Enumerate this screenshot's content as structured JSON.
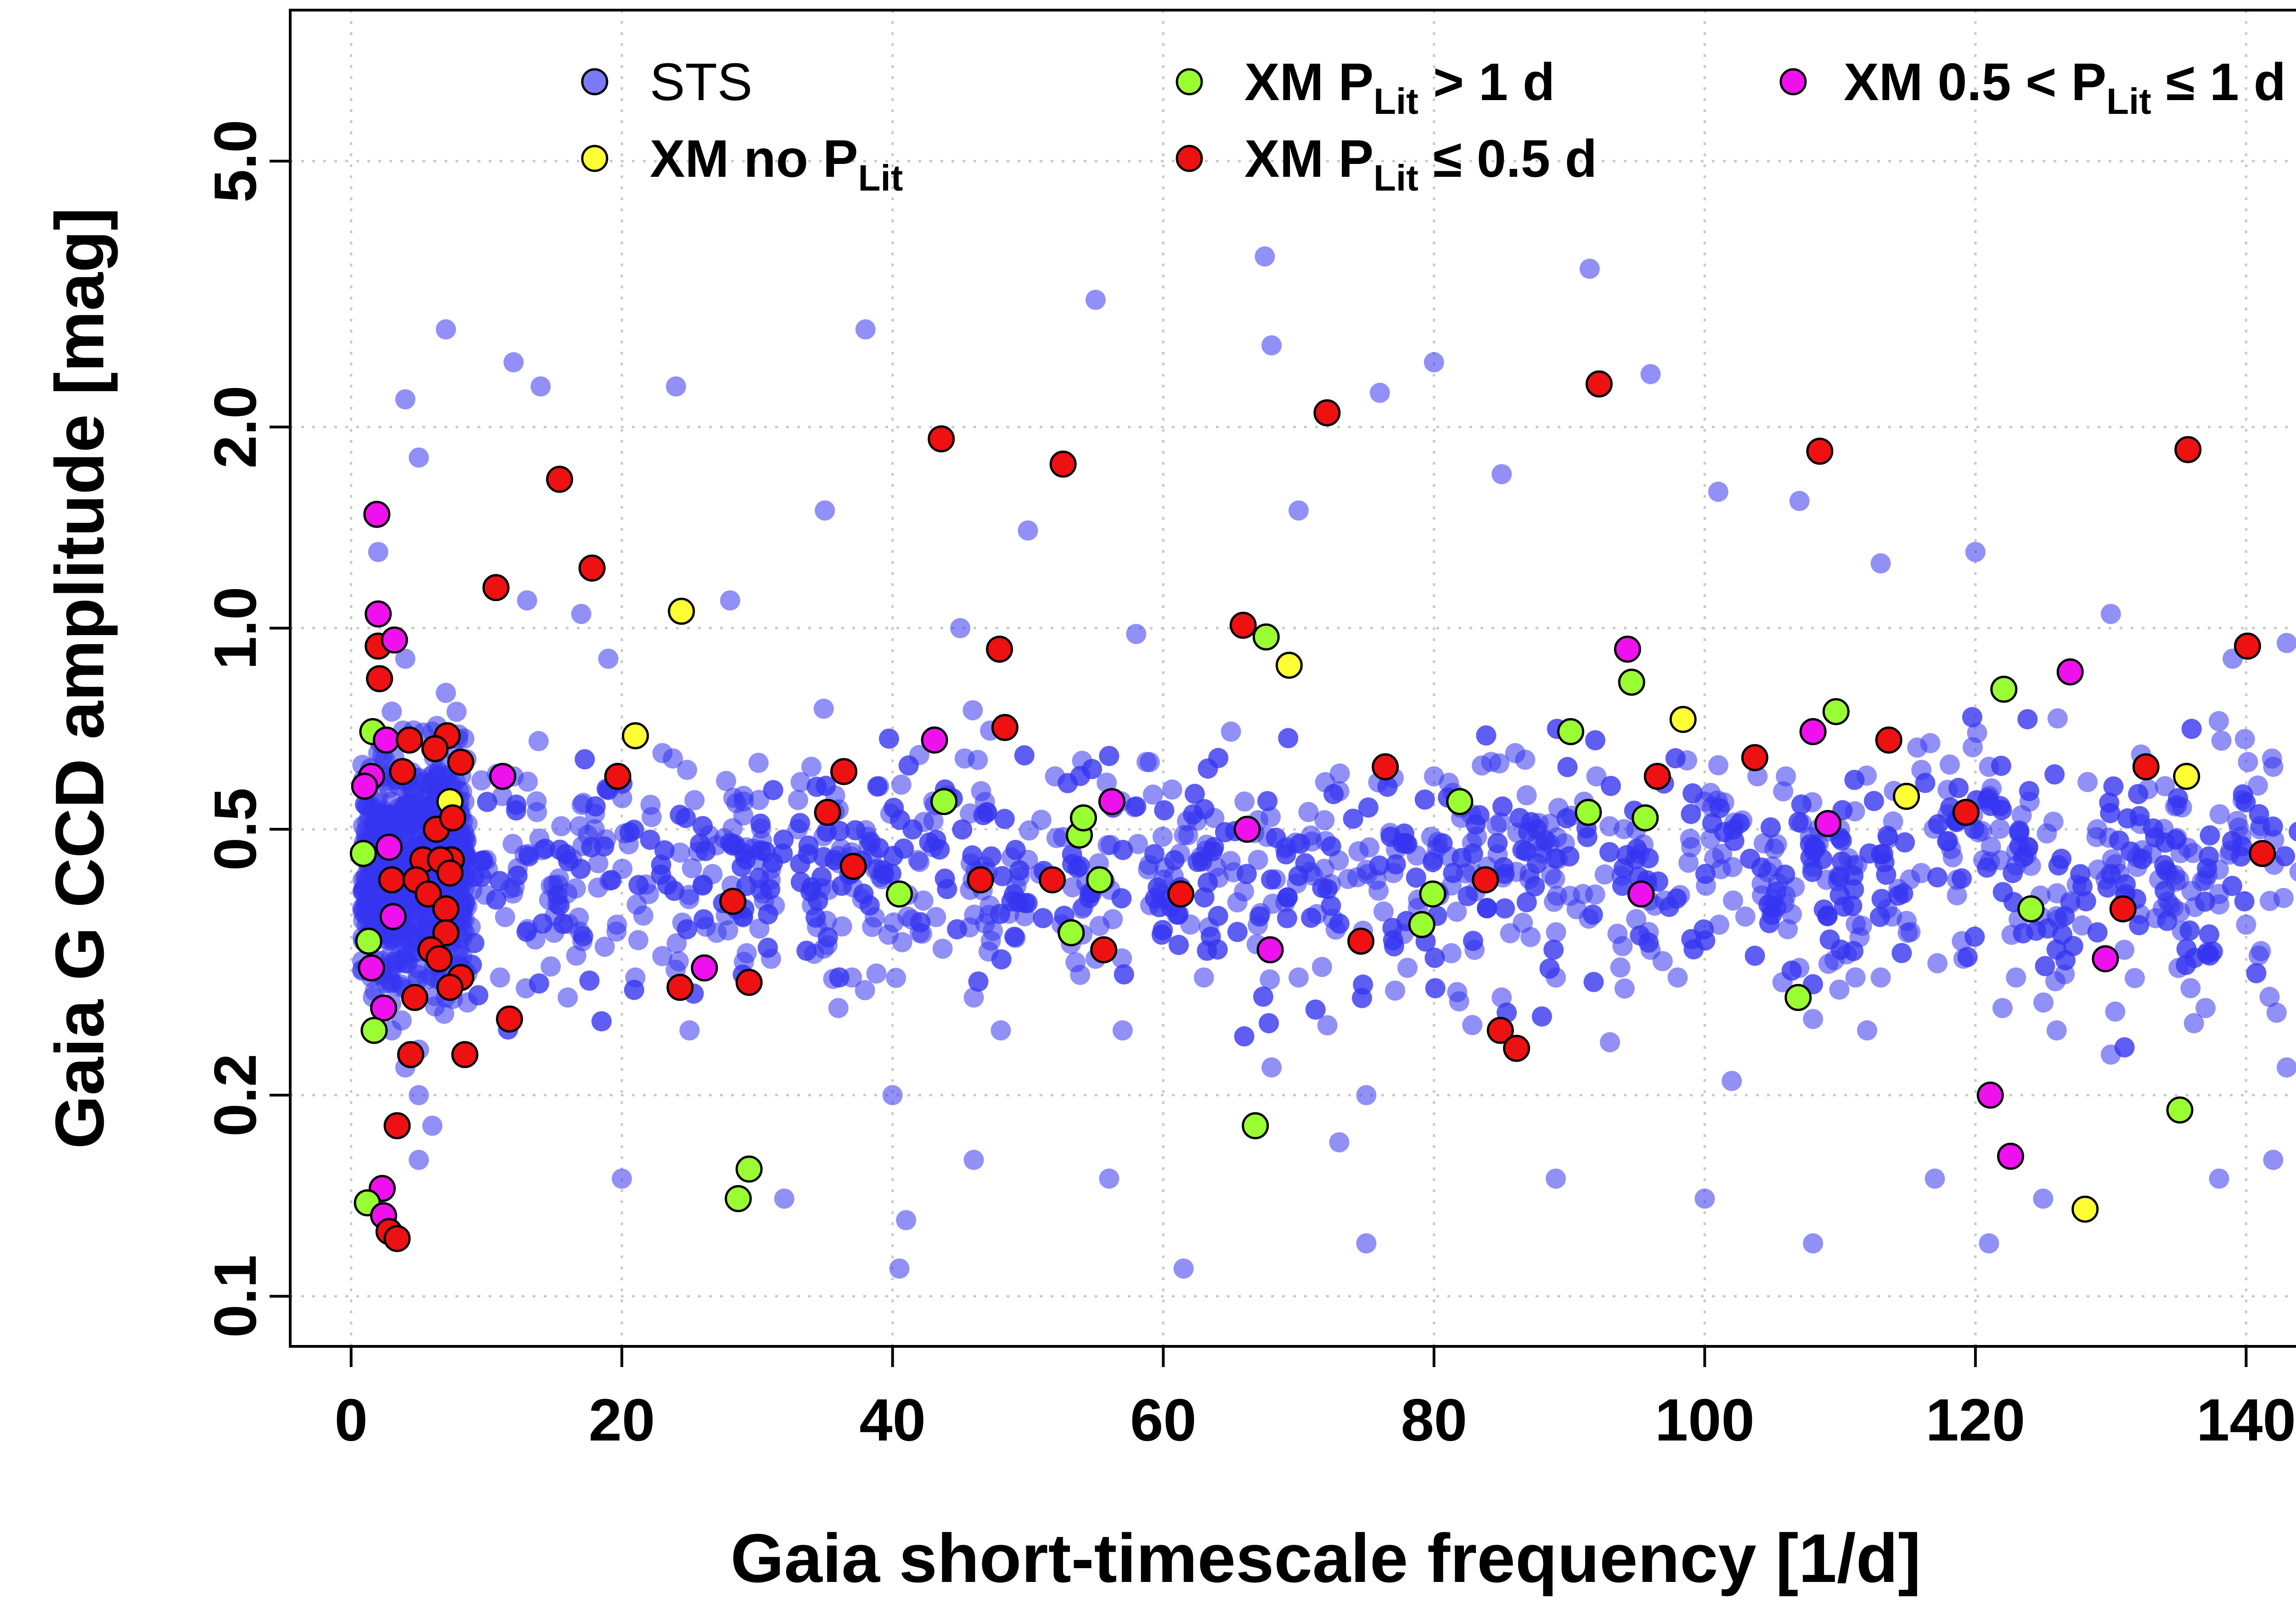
{
  "chart_data": {
    "type": "scatter",
    "xlabel": "Gaia short-timescale frequency [1/d]",
    "ylabel": "Gaia G CCD amplitude [mag]",
    "xlim": [
      -4.5,
      148.5
    ],
    "ylim_log10": [
      -1.075,
      0.925
    ],
    "y_scale": "log",
    "x_ticks": [
      0,
      20,
      40,
      60,
      80,
      100,
      120,
      140
    ],
    "y_ticks": [
      0.1,
      0.2,
      0.5,
      1.0,
      2.0,
      5.0
    ],
    "x_tick_labels": [
      "0",
      "20",
      "40",
      "60",
      "80",
      "100",
      "120",
      "140"
    ],
    "y_tick_labels": [
      "0.1",
      "0.2",
      "0.5",
      "1.0",
      "2.0",
      "5.0"
    ],
    "grid": true,
    "legend_position": "top",
    "colors": {
      "sts": "#3535f0",
      "no_plit": "#ffff33",
      "plit_gt1": "#99ff33",
      "plit_le05": "#ee1111",
      "plit_mid": "#ee11ee",
      "edge": "#000000"
    },
    "legend": {
      "sts": "STS",
      "no_plit": {
        "main": "XM no P",
        "sub": "Lit",
        "tail": ""
      },
      "plit_gt1": {
        "main": "XM P",
        "sub": "Lit",
        "tail": " > 1 d"
      },
      "plit_le05": {
        "main": "XM P",
        "sub": "Lit",
        "tail": " ≤ 0.5 d"
      },
      "plit_mid": {
        "main": "XM 0.5 < P",
        "sub": "Lit",
        "tail": " ≤ 1 d"
      }
    },
    "sts_note": "Dense background cloud of ~2500 Gaia short-timescale (STS) sources, strongest at 0-9 1/d and in vertical bands near 1/d multiples; sampled approximately below.",
    "sts_points": [
      [
        1.5,
        0.3
      ],
      [
        2,
        0.45
      ],
      [
        3,
        0.55
      ],
      [
        4,
        0.4
      ],
      [
        5,
        0.35
      ],
      [
        6,
        0.5
      ],
      [
        7,
        0.6
      ],
      [
        3,
        0.25
      ],
      [
        5,
        0.2
      ],
      [
        6,
        0.7
      ],
      [
        7,
        0.8
      ],
      [
        4,
        0.9
      ],
      [
        2,
        0.65
      ],
      [
        6,
        0.18
      ],
      [
        5,
        0.16
      ],
      [
        7,
        0.28
      ],
      [
        8,
        0.33
      ],
      [
        8,
        0.55
      ],
      [
        3,
        0.75
      ],
      [
        4,
        0.22
      ],
      [
        7,
        2.8
      ],
      [
        4,
        2.2
      ],
      [
        2,
        1.3
      ],
      [
        5,
        1.8
      ],
      [
        12,
        2.5
      ],
      [
        14,
        2.3
      ],
      [
        24,
        2.3
      ],
      [
        38,
        2.8
      ],
      [
        55,
        3.1
      ],
      [
        67.5,
        3.6
      ],
      [
        91.5,
        3.45
      ],
      [
        96,
        2.4
      ],
      [
        80,
        2.5
      ],
      [
        76,
        2.25
      ],
      [
        68,
        2.65
      ],
      [
        50,
        1.4
      ],
      [
        35,
        1.5
      ],
      [
        13,
        1.1
      ],
      [
        17,
        1.05
      ],
      [
        19,
        0.9
      ],
      [
        28,
        1.1
      ],
      [
        45,
        1.0
      ],
      [
        58,
        0.98
      ],
      [
        70,
        1.5
      ],
      [
        85,
        1.7
      ],
      [
        101,
        1.6
      ],
      [
        107,
        1.55
      ],
      [
        113,
        1.25
      ],
      [
        120,
        1.3
      ],
      [
        130,
        1.05
      ],
      [
        139,
        0.9
      ],
      [
        143,
        0.95
      ],
      [
        11,
        0.3
      ],
      [
        15,
        0.35
      ],
      [
        22,
        0.4
      ],
      [
        25,
        0.25
      ],
      [
        30,
        0.45
      ],
      [
        33,
        0.5
      ],
      [
        37,
        0.3
      ],
      [
        40,
        0.2
      ],
      [
        42,
        0.35
      ],
      [
        46,
        0.28
      ],
      [
        50,
        0.45
      ],
      [
        54,
        0.38
      ],
      [
        57,
        0.25
      ],
      [
        60,
        0.42
      ],
      [
        63,
        0.3
      ],
      [
        66,
        0.55
      ],
      [
        68,
        0.22
      ],
      [
        72,
        0.48
      ],
      [
        75,
        0.2
      ],
      [
        79,
        0.36
      ],
      [
        82,
        0.52
      ],
      [
        85,
        0.28
      ],
      [
        88,
        0.46
      ],
      [
        91,
        0.4
      ],
      [
        93,
        0.24
      ],
      [
        96,
        0.33
      ],
      [
        99,
        0.47
      ],
      [
        102,
        0.21
      ],
      [
        105,
        0.44
      ],
      [
        108,
        0.26
      ],
      [
        110,
        0.5
      ],
      [
        113,
        0.3
      ],
      [
        116,
        0.43
      ],
      [
        119,
        0.34
      ],
      [
        122,
        0.27
      ],
      [
        124,
        0.55
      ],
      [
        127,
        0.39
      ],
      [
        130,
        0.23
      ],
      [
        133,
        0.46
      ],
      [
        135,
        0.31
      ],
      [
        138,
        0.4
      ],
      [
        141,
        0.5
      ],
      [
        143,
        0.22
      ],
      [
        40.5,
        0.11
      ],
      [
        61.5,
        0.11
      ],
      [
        75,
        0.12
      ],
      [
        108,
        0.12
      ],
      [
        121,
        0.12
      ],
      [
        41,
        0.13
      ],
      [
        20,
        0.15
      ],
      [
        32,
        0.14
      ],
      [
        46,
        0.16
      ],
      [
        56,
        0.15
      ],
      [
        73,
        0.17
      ],
      [
        89,
        0.15
      ],
      [
        100,
        0.14
      ],
      [
        117,
        0.15
      ],
      [
        125,
        0.14
      ],
      [
        138,
        0.15
      ],
      [
        142,
        0.16
      ],
      [
        10,
        0.45
      ],
      [
        12,
        0.6
      ],
      [
        16,
        0.28
      ],
      [
        18,
        0.5
      ],
      [
        21,
        0.3
      ],
      [
        23,
        0.65
      ],
      [
        27,
        0.35
      ],
      [
        29,
        0.55
      ],
      [
        31,
        0.42
      ],
      [
        34,
        0.62
      ],
      [
        36,
        0.27
      ],
      [
        39,
        0.58
      ],
      [
        43,
        0.47
      ],
      [
        48,
        0.25
      ],
      [
        52,
        0.6
      ],
      [
        55,
        0.32
      ],
      [
        59,
        0.63
      ],
      [
        62,
        0.36
      ],
      [
        65,
        0.7
      ],
      [
        67,
        0.45
      ],
      [
        70,
        0.3
      ],
      [
        73,
        0.57
      ],
      [
        77,
        0.43
      ],
      [
        80,
        0.6
      ],
      [
        83,
        0.33
      ],
      [
        86,
        0.65
      ],
      [
        89,
        0.3
      ],
      [
        92,
        0.6
      ],
      [
        95,
        0.4
      ],
      [
        98,
        0.3
      ],
      [
        100,
        0.55
      ],
      [
        103,
        0.37
      ],
      [
        106,
        0.6
      ],
      [
        109,
        0.42
      ],
      [
        112,
        0.25
      ],
      [
        115,
        0.35
      ],
      [
        118,
        0.48
      ],
      [
        121,
        0.62
      ],
      [
        123,
        0.3
      ],
      [
        126,
        0.25
      ],
      [
        129,
        0.5
      ],
      [
        131,
        0.33
      ],
      [
        134,
        0.58
      ],
      [
        137,
        0.27
      ],
      [
        140,
        0.36
      ],
      [
        142,
        0.62
      ]
    ],
    "xm_points": [
      {
        "g": "plit_mid",
        "x": 1.9,
        "y": 1.48
      },
      {
        "g": "plit_mid",
        "x": 2,
        "y": 1.05
      },
      {
        "g": "plit_le05",
        "x": 2,
        "y": 0.94
      },
      {
        "g": "plit_mid",
        "x": 3.2,
        "y": 0.96
      },
      {
        "g": "plit_le05",
        "x": 2.1,
        "y": 0.84
      },
      {
        "g": "plit_gt1",
        "x": 1.6,
        "y": 0.7
      },
      {
        "g": "plit_mid",
        "x": 2.6,
        "y": 0.68
      },
      {
        "g": "plit_le05",
        "x": 4.3,
        "y": 0.68
      },
      {
        "g": "plit_le05",
        "x": 7.1,
        "y": 0.69
      },
      {
        "g": "plit_mid",
        "x": 1.5,
        "y": 0.6
      },
      {
        "g": "plit_mid",
        "x": 1,
        "y": 0.58
      },
      {
        "g": "plit_le05",
        "x": 3.8,
        "y": 0.61
      },
      {
        "g": "plit_le05",
        "x": 6.2,
        "y": 0.66
      },
      {
        "g": "plit_le05",
        "x": 8.1,
        "y": 0.63
      },
      {
        "g": "no_plit",
        "x": 7.3,
        "y": 0.55
      },
      {
        "g": "plit_gt1",
        "x": 0.9,
        "y": 0.46
      },
      {
        "g": "plit_mid",
        "x": 2.8,
        "y": 0.47
      },
      {
        "g": "plit_le05",
        "x": 6.3,
        "y": 0.5
      },
      {
        "g": "plit_le05",
        "x": 7.5,
        "y": 0.52
      },
      {
        "g": "plit_le05",
        "x": 7.4,
        "y": 0.45
      },
      {
        "g": "plit_le05",
        "x": 5.3,
        "y": 0.45
      },
      {
        "g": "plit_le05",
        "x": 6.6,
        "y": 0.45
      },
      {
        "g": "plit_le05",
        "x": 3,
        "y": 0.42
      },
      {
        "g": "plit_le05",
        "x": 4.8,
        "y": 0.42
      },
      {
        "g": "plit_le05",
        "x": 7.3,
        "y": 0.43
      },
      {
        "g": "plit_le05",
        "x": 5.7,
        "y": 0.4
      },
      {
        "g": "plit_le05",
        "x": 7,
        "y": 0.38
      },
      {
        "g": "plit_mid",
        "x": 3.1,
        "y": 0.37
      },
      {
        "g": "plit_le05",
        "x": 7,
        "y": 0.35
      },
      {
        "g": "plit_gt1",
        "x": 1.3,
        "y": 0.34
      },
      {
        "g": "plit_le05",
        "x": 5.9,
        "y": 0.33
      },
      {
        "g": "plit_le05",
        "x": 6.5,
        "y": 0.32
      },
      {
        "g": "plit_mid",
        "x": 1.5,
        "y": 0.31
      },
      {
        "g": "plit_le05",
        "x": 8.1,
        "y": 0.3
      },
      {
        "g": "plit_le05",
        "x": 7.3,
        "y": 0.29
      },
      {
        "g": "plit_le05",
        "x": 4.7,
        "y": 0.28
      },
      {
        "g": "plit_mid",
        "x": 2.4,
        "y": 0.27
      },
      {
        "g": "plit_gt1",
        "x": 1.7,
        "y": 0.25
      },
      {
        "g": "plit_le05",
        "x": 4.4,
        "y": 0.23
      },
      {
        "g": "plit_le05",
        "x": 8.4,
        "y": 0.23
      },
      {
        "g": "plit_le05",
        "x": 3.4,
        "y": 0.18
      },
      {
        "g": "plit_mid",
        "x": 2.3,
        "y": 0.145
      },
      {
        "g": "plit_gt1",
        "x": 1.2,
        "y": 0.138
      },
      {
        "g": "plit_mid",
        "x": 2.4,
        "y": 0.132
      },
      {
        "g": "plit_le05",
        "x": 2.8,
        "y": 0.125
      },
      {
        "g": "plit_le05",
        "x": 3.4,
        "y": 0.122
      },
      {
        "g": "plit_mid",
        "x": 11.2,
        "y": 0.6
      },
      {
        "g": "plit_le05",
        "x": 10.7,
        "y": 1.15
      },
      {
        "g": "plit_le05",
        "x": 11.7,
        "y": 0.26
      },
      {
        "g": "plit_le05",
        "x": 15.4,
        "y": 1.67
      },
      {
        "g": "plit_le05",
        "x": 17.8,
        "y": 1.23
      },
      {
        "g": "plit_le05",
        "x": 19.7,
        "y": 0.6
      },
      {
        "g": "no_plit",
        "x": 21,
        "y": 0.69
      },
      {
        "g": "no_plit",
        "x": 24.4,
        "y": 1.06
      },
      {
        "g": "plit_le05",
        "x": 24.3,
        "y": 0.29
      },
      {
        "g": "plit_mid",
        "x": 26.1,
        "y": 0.31
      },
      {
        "g": "plit_le05",
        "x": 28.2,
        "y": 0.39
      },
      {
        "g": "plit_gt1",
        "x": 28.6,
        "y": 0.14
      },
      {
        "g": "plit_gt1",
        "x": 29.4,
        "y": 0.155
      },
      {
        "g": "plit_le05",
        "x": 29.4,
        "y": 0.295
      },
      {
        "g": "plit_le05",
        "x": 35.2,
        "y": 0.53
      },
      {
        "g": "plit_le05",
        "x": 36.4,
        "y": 0.61
      },
      {
        "g": "plit_le05",
        "x": 37.1,
        "y": 0.44
      },
      {
        "g": "plit_gt1",
        "x": 40.5,
        "y": 0.4
      },
      {
        "g": "plit_mid",
        "x": 43.1,
        "y": 0.68
      },
      {
        "g": "plit_le05",
        "x": 43.6,
        "y": 1.92
      },
      {
        "g": "plit_gt1",
        "x": 43.8,
        "y": 0.55
      },
      {
        "g": "plit_le05",
        "x": 46.5,
        "y": 0.42
      },
      {
        "g": "plit_le05",
        "x": 47.9,
        "y": 0.93
      },
      {
        "g": "plit_le05",
        "x": 48.3,
        "y": 0.71
      },
      {
        "g": "plit_le05",
        "x": 51.8,
        "y": 0.42
      },
      {
        "g": "plit_le05",
        "x": 52.6,
        "y": 1.76
      },
      {
        "g": "plit_gt1",
        "x": 53.2,
        "y": 0.35
      },
      {
        "g": "plit_gt1",
        "x": 53.8,
        "y": 0.49
      },
      {
        "g": "plit_gt1",
        "x": 54.1,
        "y": 0.52
      },
      {
        "g": "plit_gt1",
        "x": 55.3,
        "y": 0.42
      },
      {
        "g": "plit_le05",
        "x": 55.6,
        "y": 0.33
      },
      {
        "g": "plit_mid",
        "x": 56.2,
        "y": 0.55
      },
      {
        "g": "plit_le05",
        "x": 61.3,
        "y": 0.4
      },
      {
        "g": "plit_le05",
        "x": 65.9,
        "y": 1.01
      },
      {
        "g": "plit_mid",
        "x": 66.2,
        "y": 0.5
      },
      {
        "g": "plit_gt1",
        "x": 66.8,
        "y": 0.18
      },
      {
        "g": "plit_gt1",
        "x": 67.6,
        "y": 0.97
      },
      {
        "g": "plit_mid",
        "x": 67.9,
        "y": 0.33
      },
      {
        "g": "no_plit",
        "x": 69.3,
        "y": 0.88
      },
      {
        "g": "plit_le05",
        "x": 72.1,
        "y": 2.1
      },
      {
        "g": "plit_le05",
        "x": 74.6,
        "y": 0.34
      },
      {
        "g": "plit_le05",
        "x": 76.4,
        "y": 0.62
      },
      {
        "g": "plit_gt1",
        "x": 79.1,
        "y": 0.36
      },
      {
        "g": "plit_gt1",
        "x": 79.9,
        "y": 0.4
      },
      {
        "g": "plit_gt1",
        "x": 81.9,
        "y": 0.55
      },
      {
        "g": "plit_le05",
        "x": 83.8,
        "y": 0.42
      },
      {
        "g": "plit_le05",
        "x": 84.9,
        "y": 0.25
      },
      {
        "g": "plit_le05",
        "x": 86.1,
        "y": 0.235
      },
      {
        "g": "plit_gt1",
        "x": 90.1,
        "y": 0.7
      },
      {
        "g": "plit_gt1",
        "x": 91.4,
        "y": 0.53
      },
      {
        "g": "plit_le05",
        "x": 92.2,
        "y": 2.32
      },
      {
        "g": "plit_mid",
        "x": 94.3,
        "y": 0.93
      },
      {
        "g": "plit_gt1",
        "x": 94.6,
        "y": 0.83
      },
      {
        "g": "plit_mid",
        "x": 95.3,
        "y": 0.4
      },
      {
        "g": "plit_gt1",
        "x": 95.6,
        "y": 0.52
      },
      {
        "g": "plit_le05",
        "x": 96.5,
        "y": 0.6
      },
      {
        "g": "no_plit",
        "x": 98.4,
        "y": 0.73
      },
      {
        "g": "plit_le05",
        "x": 103.7,
        "y": 0.64
      },
      {
        "g": "plit_gt1",
        "x": 106.9,
        "y": 0.28
      },
      {
        "g": "plit_mid",
        "x": 108,
        "y": 0.7
      },
      {
        "g": "plit_le05",
        "x": 108.5,
        "y": 1.84
      },
      {
        "g": "plit_mid",
        "x": 109.1,
        "y": 0.51
      },
      {
        "g": "plit_gt1",
        "x": 109.7,
        "y": 0.75
      },
      {
        "g": "plit_le05",
        "x": 113.6,
        "y": 0.68
      },
      {
        "g": "no_plit",
        "x": 114.9,
        "y": 0.56
      },
      {
        "g": "plit_le05",
        "x": 119.3,
        "y": 0.53
      },
      {
        "g": "plit_mid",
        "x": 121.1,
        "y": 0.2
      },
      {
        "g": "plit_gt1",
        "x": 122.1,
        "y": 0.81
      },
      {
        "g": "plit_mid",
        "x": 122.6,
        "y": 0.162
      },
      {
        "g": "plit_gt1",
        "x": 124.1,
        "y": 0.38
      },
      {
        "g": "plit_mid",
        "x": 127,
        "y": 0.86
      },
      {
        "g": "no_plit",
        "x": 128.1,
        "y": 0.135
      },
      {
        "g": "plit_mid",
        "x": 129.6,
        "y": 0.32
      },
      {
        "g": "plit_le05",
        "x": 130.9,
        "y": 0.38
      },
      {
        "g": "plit_le05",
        "x": 132.6,
        "y": 0.62
      },
      {
        "g": "plit_gt1",
        "x": 135.1,
        "y": 0.19
      },
      {
        "g": "no_plit",
        "x": 135.6,
        "y": 0.6
      },
      {
        "g": "plit_le05",
        "x": 135.7,
        "y": 1.85
      },
      {
        "g": "plit_le05",
        "x": 140.1,
        "y": 0.94
      },
      {
        "g": "plit_le05",
        "x": 141.2,
        "y": 0.46
      }
    ]
  }
}
